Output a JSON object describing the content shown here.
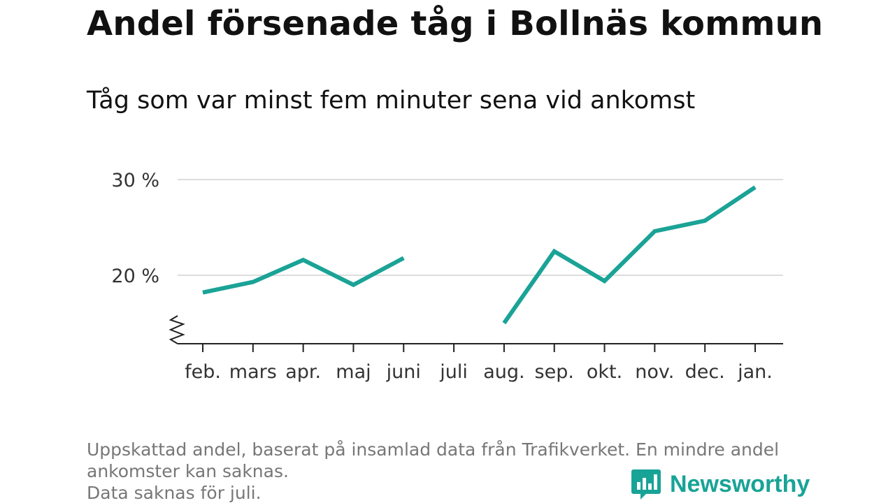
{
  "title": "Andel försenade tåg i Bollnäs kommun",
  "subtitle": "Tåg som var minst fem minuter sena vid ankomst",
  "chart_data": {
    "type": "line",
    "categories": [
      "feb.",
      "mars",
      "apr.",
      "maj",
      "juni",
      "juli",
      "aug.",
      "sep.",
      "okt.",
      "nov.",
      "dec.",
      "jan."
    ],
    "series": [
      {
        "values": [
          18.2,
          19.3,
          21.6,
          19.0,
          21.8,
          null,
          15.0,
          22.5,
          19.4,
          24.6,
          25.7,
          29.2
        ],
        "color": "#1aa396"
      }
    ],
    "ylim": [
      13,
      30
    ],
    "yticks": [
      20,
      30
    ],
    "ytick_labels": [
      "20 %",
      "30 %"
    ],
    "axis_break": true,
    "grid": true,
    "xlabel": "",
    "ylabel": ""
  },
  "footnote": {
    "line1": "Uppskattad andel, baserat på insamlad data från Trafikverket. En mindre andel",
    "line2": "ankomster kan saknas.",
    "line3": "Data saknas för juli."
  },
  "brand": {
    "name": "Newsworthy",
    "icon": "newsworthy-logo-icon",
    "color": "#18a397"
  }
}
